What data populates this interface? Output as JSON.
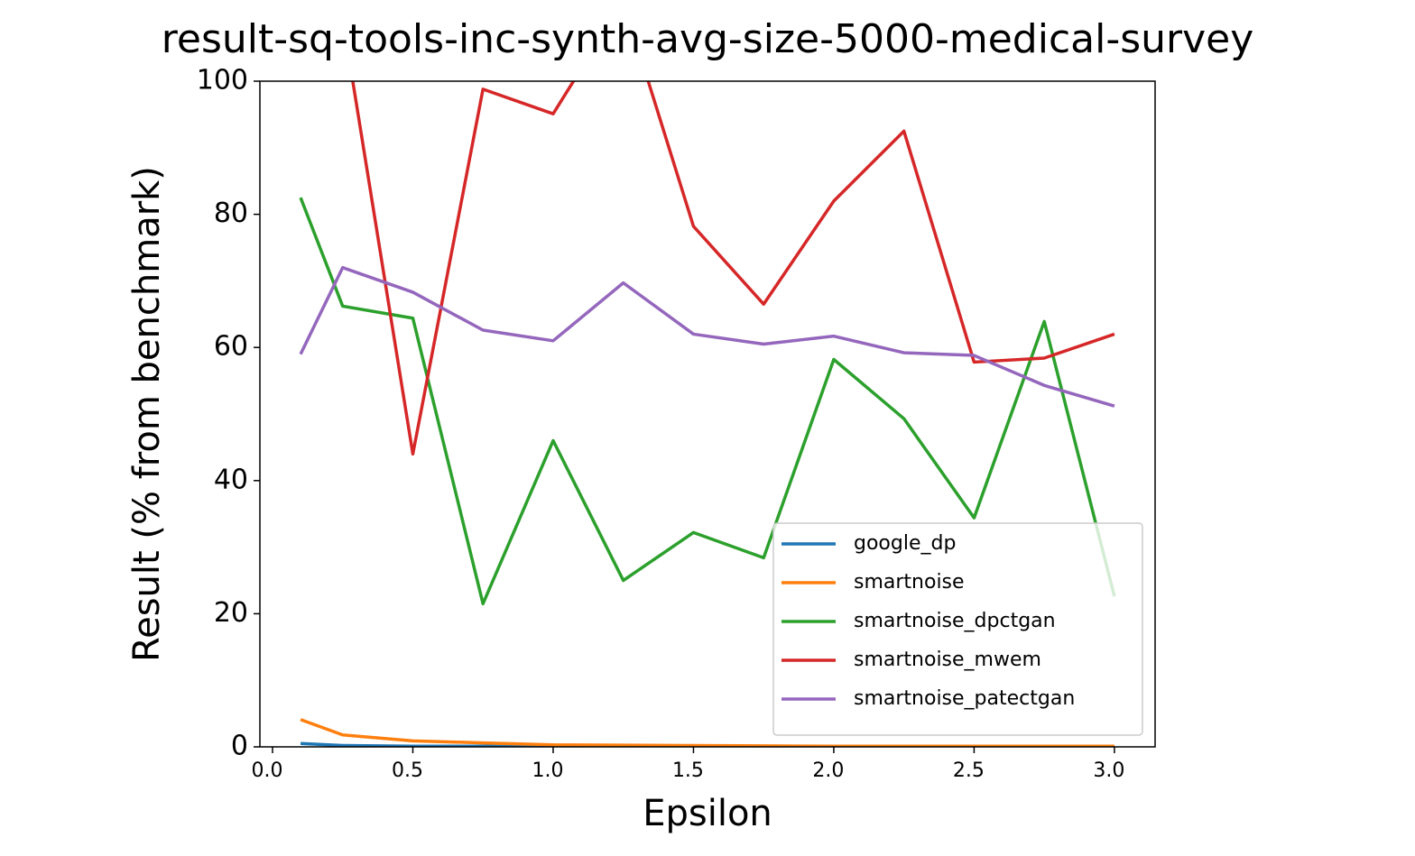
{
  "chart_data": {
    "type": "line",
    "title": "result-sq-tools-inc-synth-avg-size-5000-medical-survey",
    "xlabel": "Epsilon",
    "ylabel": "Result (% from benchmark)",
    "x": [
      0.1,
      0.25,
      0.5,
      0.75,
      1.0,
      1.25,
      1.5,
      1.75,
      2.0,
      2.25,
      2.5,
      2.75,
      3.0
    ],
    "series": [
      {
        "name": "google_dp",
        "color": "#1f77b4",
        "values": [
          0.5,
          0.2,
          0.1,
          0.1,
          0.05,
          0.05,
          0.05,
          0.05,
          0.05,
          0.05,
          0.05,
          0.05,
          0.05
        ]
      },
      {
        "name": "smartnoise",
        "color": "#ff7f0e",
        "values": [
          4.1,
          1.8,
          0.9,
          0.6,
          0.3,
          0.25,
          0.2,
          0.15,
          0.1,
          0.1,
          0.1,
          0.1,
          0.1
        ]
      },
      {
        "name": "smartnoise_dpctgan",
        "color": "#2ca02c",
        "values": [
          82.5,
          66.2,
          64.4,
          21.5,
          46,
          25,
          32.2,
          28.4,
          58.2,
          49.3,
          34.4,
          63.9,
          22.6
        ]
      },
      {
        "name": "smartnoise_mwem",
        "color": "#d62728",
        "values": [
          120,
          109.4,
          44,
          98.8,
          95.1,
          112,
          78.2,
          66.5,
          82,
          92.5,
          57.8,
          58.4,
          62
        ]
      },
      {
        "name": "smartnoise_patectgan",
        "color": "#9467bd",
        "values": [
          59,
          72,
          68.3,
          62.6,
          61,
          69.7,
          62,
          60.5,
          61.7,
          59.2,
          58.8,
          54.3,
          51.2
        ]
      }
    ],
    "xlim": [
      -0.045,
      3.145
    ],
    "ylim": [
      0,
      100
    ],
    "xticks": [
      {
        "value": 0,
        "label": "0.0"
      },
      0.5,
      {
        "value": 1,
        "label": "1.0"
      },
      1.5,
      {
        "value": 2,
        "label": "2.0"
      },
      2.5,
      {
        "value": 3,
        "label": "3.0"
      }
    ],
    "yticks": [
      0,
      20,
      40,
      60,
      80,
      100
    ],
    "legend": "lower right",
    "grid": false
  }
}
